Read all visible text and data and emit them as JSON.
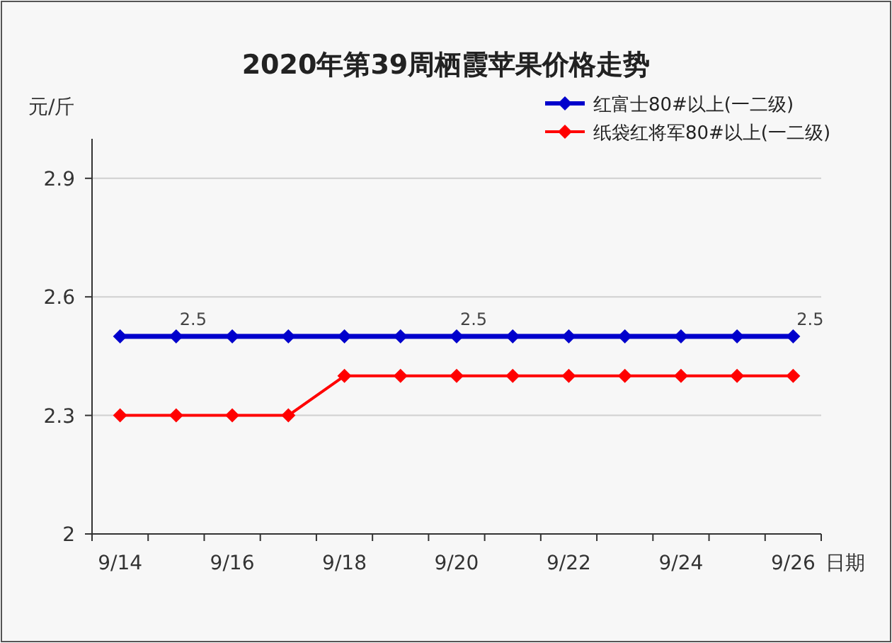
{
  "chart_data": {
    "type": "line",
    "title": "2020年第39周栖霞苹果价格走势",
    "xlabel": "日期",
    "ylabel": "元/斤",
    "categories": [
      "9/14",
      null,
      "9/16",
      null,
      "9/18",
      null,
      "9/20",
      null,
      "9/22",
      null,
      "9/24",
      null,
      "9/26"
    ],
    "series": [
      {
        "name": "红富士80#以上(一二级)",
        "color": "#0000cc",
        "values": [
          2.5,
          2.5,
          2.5,
          2.5,
          2.5,
          2.5,
          2.5,
          2.5,
          2.5,
          2.5,
          2.5,
          2.5,
          2.5
        ],
        "value_labels": [
          null,
          "2.5",
          null,
          null,
          null,
          null,
          "2.5",
          null,
          null,
          null,
          null,
          null,
          "2.5"
        ]
      },
      {
        "name": "纸袋红将军80#以上(一二级)",
        "color": "#ff0000",
        "values": [
          2.3,
          2.3,
          2.3,
          2.3,
          2.4,
          2.4,
          2.4,
          2.4,
          2.4,
          2.4,
          2.4,
          2.4,
          2.4
        ]
      }
    ],
    "ylim": [
      2,
      3
    ],
    "yticks": [
      2,
      2.3,
      2.6,
      2.9
    ],
    "grid": "y",
    "legend": "top right",
    "marker": "diamond"
  }
}
